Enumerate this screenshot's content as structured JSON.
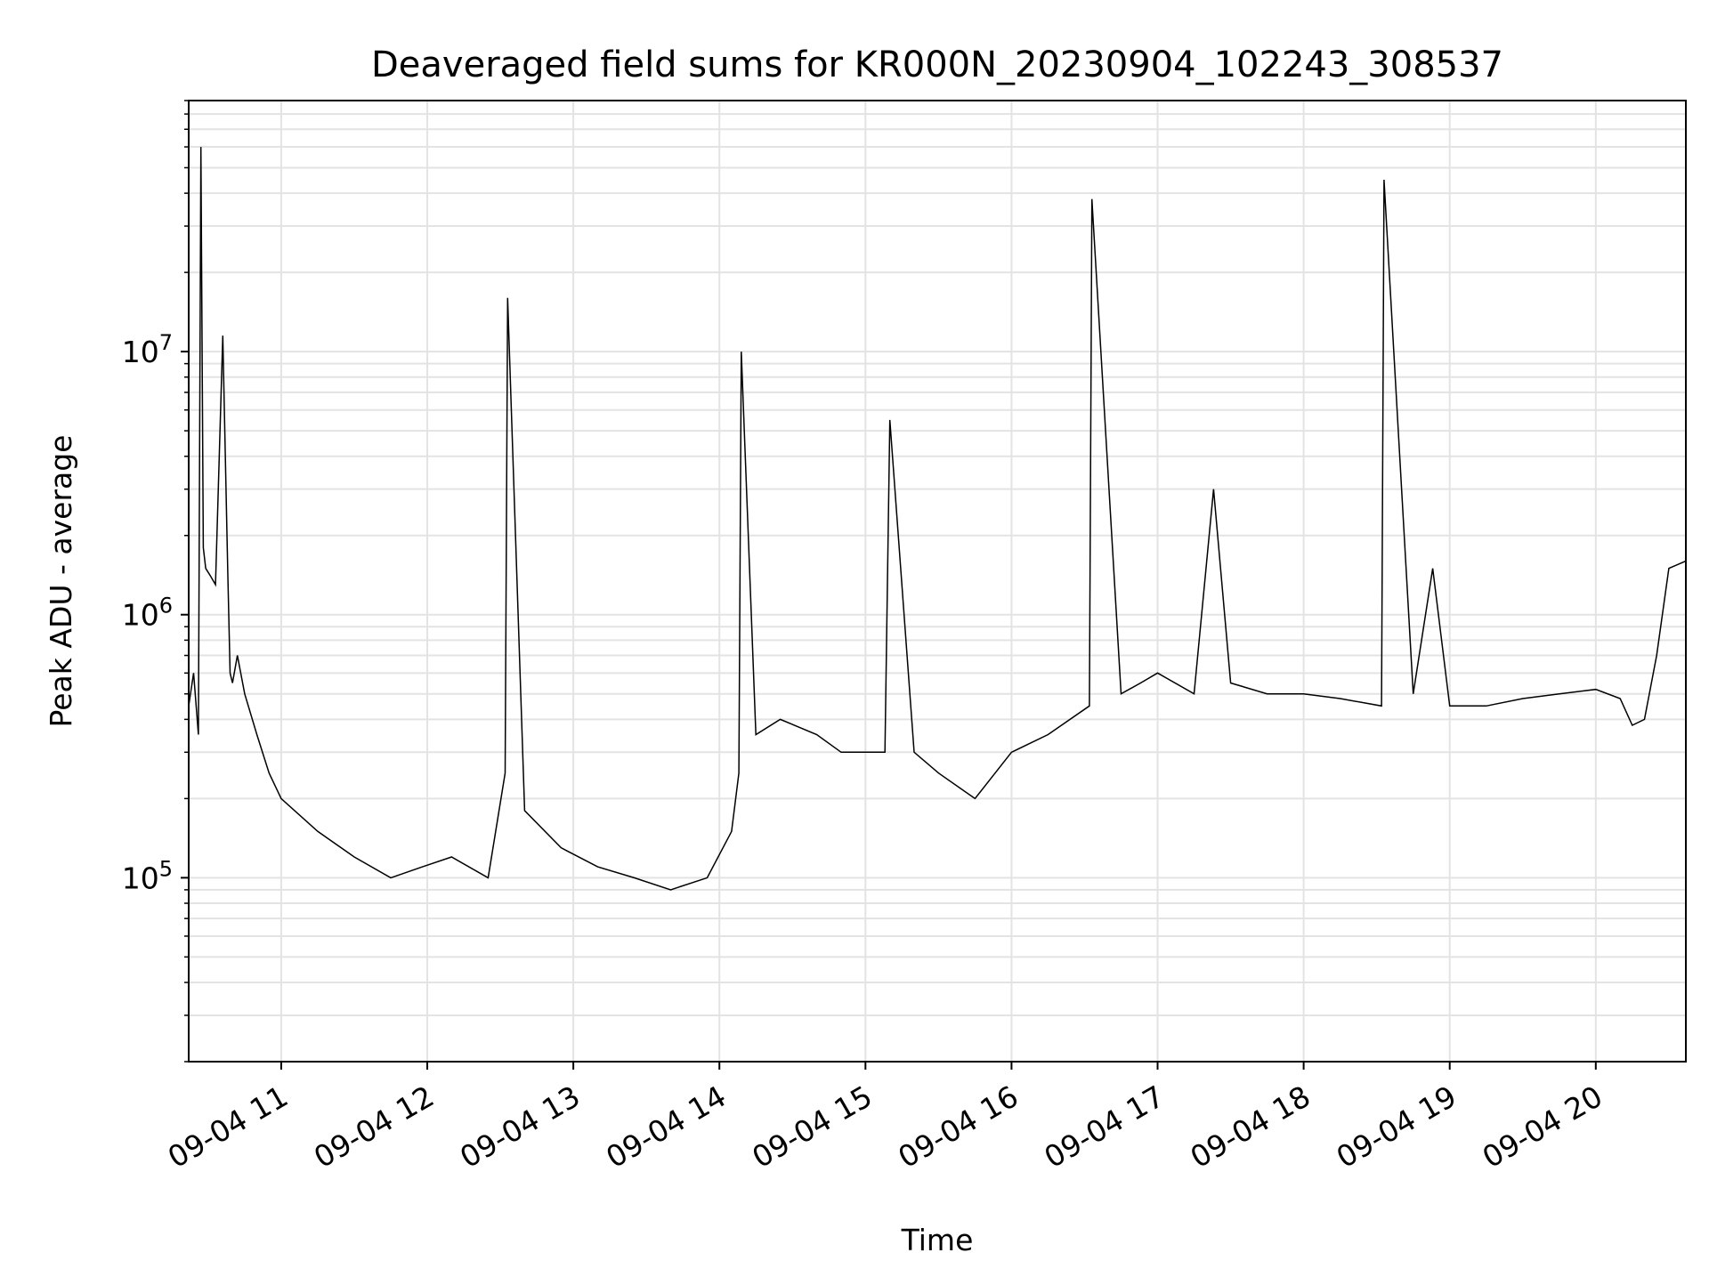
{
  "chart_data": {
    "type": "line",
    "title": "Deaveraged field sums for KR000N_20230904_102243_308537",
    "xlabel": "Time",
    "ylabel": "Peak ADU - average",
    "y_scale": "log",
    "ylim": [
      20000,
      90000000
    ],
    "xlim": [
      "2023-09-04 10:22",
      "2023-09-04 20:37"
    ],
    "x_ticks": [
      "09-04 11",
      "09-04 12",
      "09-04 13",
      "09-04 14",
      "09-04 15",
      "09-04 16",
      "09-04 17",
      "09-04 18",
      "09-04 19",
      "09-04 20"
    ],
    "x_tick_times": [
      "2023-09-04 11:00",
      "2023-09-04 12:00",
      "2023-09-04 13:00",
      "2023-09-04 14:00",
      "2023-09-04 15:00",
      "2023-09-04 16:00",
      "2023-09-04 17:00",
      "2023-09-04 18:00",
      "2023-09-04 19:00",
      "2023-09-04 20:00"
    ],
    "y_ticks": [
      {
        "base": "10",
        "exp": "5",
        "value": 100000
      },
      {
        "base": "10",
        "exp": "6",
        "value": 1000000
      },
      {
        "base": "10",
        "exp": "7",
        "value": 10000000
      }
    ],
    "grid": true,
    "line_color": "#000000",
    "grid_color": "#e3e3e3",
    "series": [
      {
        "x": [
          "2023-09-04 10:22",
          "2023-09-04 10:24",
          "2023-09-04 10:26",
          "2023-09-04 10:27",
          "2023-09-04 10:28",
          "2023-09-04 10:29",
          "2023-09-04 10:31",
          "2023-09-04 10:33",
          "2023-09-04 10:36",
          "2023-09-04 10:38",
          "2023-09-04 10:39",
          "2023-09-04 10:40",
          "2023-09-04 10:42",
          "2023-09-04 10:45",
          "2023-09-04 10:50",
          "2023-09-04 10:55",
          "2023-09-04 11:00",
          "2023-09-04 11:15",
          "2023-09-04 11:30",
          "2023-09-04 11:45",
          "2023-09-04 11:58",
          "2023-09-04 12:10",
          "2023-09-04 12:25",
          "2023-09-04 12:32",
          "2023-09-04 12:33",
          "2023-09-04 12:40",
          "2023-09-04 12:55",
          "2023-09-04 13:10",
          "2023-09-04 13:25",
          "2023-09-04 13:40",
          "2023-09-04 13:55",
          "2023-09-04 14:05",
          "2023-09-04 14:08",
          "2023-09-04 14:09",
          "2023-09-04 14:15",
          "2023-09-04 14:25",
          "2023-09-04 14:40",
          "2023-09-04 14:50",
          "2023-09-04 15:08",
          "2023-09-04 15:10",
          "2023-09-04 15:20",
          "2023-09-04 15:30",
          "2023-09-04 15:45",
          "2023-09-04 16:00",
          "2023-09-04 16:15",
          "2023-09-04 16:32",
          "2023-09-04 16:33",
          "2023-09-04 16:45",
          "2023-09-04 16:53",
          "2023-09-04 17:00",
          "2023-09-04 17:15",
          "2023-09-04 17:23",
          "2023-09-04 17:30",
          "2023-09-04 17:45",
          "2023-09-04 18:00",
          "2023-09-04 18:15",
          "2023-09-04 18:32",
          "2023-09-04 18:33",
          "2023-09-04 18:45",
          "2023-09-04 18:53",
          "2023-09-04 19:00",
          "2023-09-04 19:15",
          "2023-09-04 19:30",
          "2023-09-04 19:45",
          "2023-09-04 20:00",
          "2023-09-04 20:10",
          "2023-09-04 20:15",
          "2023-09-04 20:20",
          "2023-09-04 20:25",
          "2023-09-04 20:30",
          "2023-09-04 20:37"
        ],
        "y": [
          450000,
          600000,
          350000,
          60000000,
          1800000,
          1500000,
          1400000,
          1300000,
          11500000,
          1500000,
          600000,
          550000,
          700000,
          500000,
          350000,
          250000,
          200000,
          150000,
          120000,
          100000,
          110000,
          120000,
          100000,
          250000,
          16000000,
          180000,
          130000,
          110000,
          100000,
          90000,
          100000,
          150000,
          250000,
          10000000,
          350000,
          400000,
          350000,
          300000,
          300000,
          5500000,
          300000,
          250000,
          200000,
          300000,
          350000,
          450000,
          38000000,
          500000,
          550000,
          600000,
          500000,
          3000000,
          550000,
          500000,
          500000,
          480000,
          450000,
          45000000,
          500000,
          1500000,
          450000,
          450000,
          480000,
          500000,
          520000,
          480000,
          380000,
          400000,
          700000,
          1500000,
          1600000
        ]
      }
    ]
  }
}
